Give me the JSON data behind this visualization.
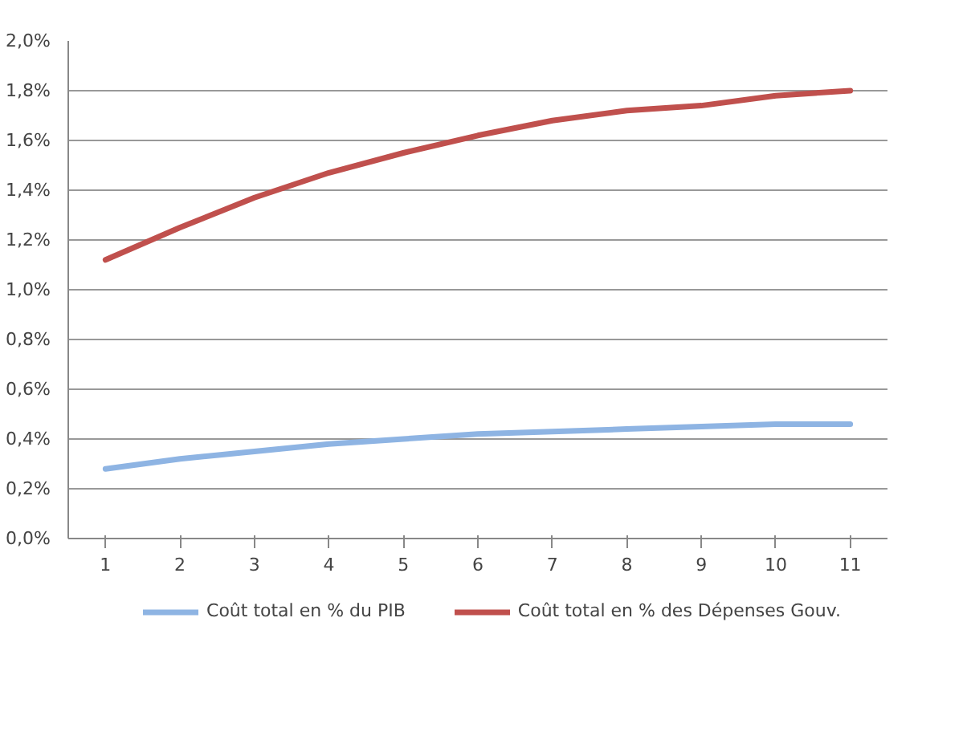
{
  "chart_data": {
    "type": "line",
    "categories": [
      "1",
      "2",
      "3",
      "4",
      "5",
      "6",
      "7",
      "8",
      "9",
      "10",
      "11"
    ],
    "series": [
      {
        "name": "Coût total en % du PIB",
        "color": "#8eb4e3",
        "values": [
          0.28,
          0.32,
          0.35,
          0.38,
          0.4,
          0.42,
          0.43,
          0.44,
          0.45,
          0.46,
          0.46
        ]
      },
      {
        "name": "Coût total en % des Dépenses Gouv.",
        "color": "#c0504d",
        "values": [
          1.12,
          1.25,
          1.37,
          1.47,
          1.55,
          1.62,
          1.68,
          1.72,
          1.74,
          1.78,
          1.8
        ]
      }
    ],
    "ylim": [
      0,
      2.0
    ],
    "yticks": [
      {
        "value": 0,
        "label": "0,0%"
      },
      {
        "value": 0.2,
        "label": "0,2%"
      },
      {
        "value": 0.4,
        "label": "0,4%"
      },
      {
        "value": 0.6,
        "label": "0,6%"
      },
      {
        "value": 0.8,
        "label": "0,8%"
      },
      {
        "value": 1.0,
        "label": "1,0%"
      },
      {
        "value": 1.2,
        "label": "1,2%"
      },
      {
        "value": 1.4,
        "label": "1,4%"
      },
      {
        "value": 1.6,
        "label": "1,6%"
      },
      {
        "value": 1.8,
        "label": "1,8%"
      },
      {
        "value": 2.0,
        "label": "2,0%"
      }
    ],
    "grid": "y",
    "legend": "bottom",
    "marker": "none",
    "line_style": "solid"
  }
}
